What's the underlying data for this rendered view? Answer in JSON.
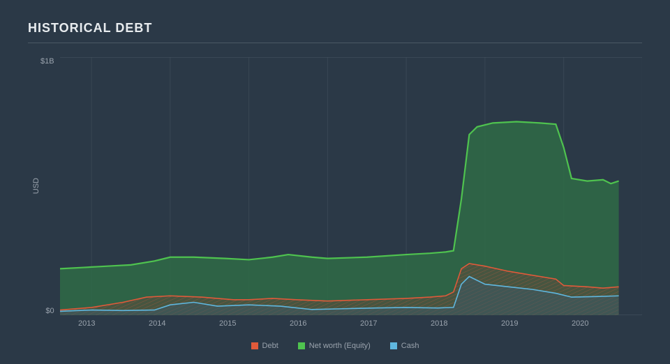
{
  "background_color": "#2b3947",
  "title": "HISTORICAL DEBT",
  "title_color": "#e8ecef",
  "rule_color": "#4a5864",
  "grid_color": "#4a5864",
  "axis_text_color": "#9aa3ad",
  "chart": {
    "type": "area",
    "y_axis_label": "USD",
    "x_ticks": [
      "2013",
      "2014",
      "2015",
      "2016",
      "2017",
      "2018",
      "2019",
      "2020"
    ],
    "y_ticks": [
      "$1B",
      "",
      "$0"
    ],
    "xlim": [
      2012.6,
      2020
    ],
    "ylim": [
      0,
      1.0
    ],
    "series": [
      {
        "name": "Net worth (Equity)",
        "stroke": "#4fc34f",
        "fill": "#2f6b46",
        "fill_opacity": 0.85,
        "stroke_width": 2.2,
        "points": [
          [
            2012.6,
            0.18
          ],
          [
            2012.9,
            0.185
          ],
          [
            2013.2,
            0.19
          ],
          [
            2013.5,
            0.195
          ],
          [
            2013.8,
            0.21
          ],
          [
            2014.0,
            0.225
          ],
          [
            2014.3,
            0.225
          ],
          [
            2014.7,
            0.22
          ],
          [
            2015.0,
            0.215
          ],
          [
            2015.3,
            0.225
          ],
          [
            2015.5,
            0.235
          ],
          [
            2015.8,
            0.225
          ],
          [
            2016.0,
            0.22
          ],
          [
            2016.5,
            0.225
          ],
          [
            2017.0,
            0.235
          ],
          [
            2017.3,
            0.24
          ],
          [
            2017.5,
            0.245
          ],
          [
            2017.6,
            0.25
          ],
          [
            2017.7,
            0.45
          ],
          [
            2017.8,
            0.7
          ],
          [
            2017.9,
            0.73
          ],
          [
            2018.1,
            0.745
          ],
          [
            2018.4,
            0.75
          ],
          [
            2018.7,
            0.745
          ],
          [
            2018.9,
            0.74
          ],
          [
            2019.0,
            0.65
          ],
          [
            2019.1,
            0.53
          ],
          [
            2019.3,
            0.52
          ],
          [
            2019.5,
            0.525
          ],
          [
            2019.6,
            0.51
          ],
          [
            2019.7,
            0.52
          ]
        ]
      },
      {
        "name": "Debt",
        "stroke": "#e05a3a",
        "fill": "#5d4a3d",
        "fill_opacity": 0.55,
        "stroke_width": 1.6,
        "hatch": true,
        "hatch_color": "#d15a3a",
        "points": [
          [
            2012.6,
            0.02
          ],
          [
            2013.0,
            0.03
          ],
          [
            2013.4,
            0.05
          ],
          [
            2013.7,
            0.07
          ],
          [
            2014.0,
            0.075
          ],
          [
            2014.4,
            0.07
          ],
          [
            2014.8,
            0.06
          ],
          [
            2015.0,
            0.06
          ],
          [
            2015.3,
            0.065
          ],
          [
            2015.6,
            0.06
          ],
          [
            2016.0,
            0.055
          ],
          [
            2016.5,
            0.06
          ],
          [
            2017.0,
            0.065
          ],
          [
            2017.3,
            0.07
          ],
          [
            2017.5,
            0.075
          ],
          [
            2017.6,
            0.09
          ],
          [
            2017.7,
            0.18
          ],
          [
            2017.8,
            0.2
          ],
          [
            2018.0,
            0.19
          ],
          [
            2018.3,
            0.17
          ],
          [
            2018.6,
            0.155
          ],
          [
            2018.9,
            0.14
          ],
          [
            2019.0,
            0.115
          ],
          [
            2019.3,
            0.11
          ],
          [
            2019.5,
            0.105
          ],
          [
            2019.7,
            0.11
          ]
        ]
      },
      {
        "name": "Cash",
        "stroke": "#5fb7df",
        "fill": "#3a5868",
        "fill_opacity": 0.5,
        "stroke_width": 1.6,
        "points": [
          [
            2012.6,
            0.015
          ],
          [
            2013.0,
            0.02
          ],
          [
            2013.4,
            0.018
          ],
          [
            2013.8,
            0.02
          ],
          [
            2014.0,
            0.04
          ],
          [
            2014.3,
            0.05
          ],
          [
            2014.6,
            0.035
          ],
          [
            2015.0,
            0.04
          ],
          [
            2015.4,
            0.035
          ],
          [
            2015.8,
            0.022
          ],
          [
            2016.2,
            0.025
          ],
          [
            2016.6,
            0.028
          ],
          [
            2017.0,
            0.03
          ],
          [
            2017.4,
            0.028
          ],
          [
            2017.6,
            0.03
          ],
          [
            2017.7,
            0.12
          ],
          [
            2017.8,
            0.15
          ],
          [
            2018.0,
            0.12
          ],
          [
            2018.3,
            0.11
          ],
          [
            2018.6,
            0.1
          ],
          [
            2018.9,
            0.085
          ],
          [
            2019.1,
            0.07
          ],
          [
            2019.4,
            0.072
          ],
          [
            2019.7,
            0.075
          ]
        ]
      }
    ],
    "legend": [
      {
        "label": "Debt",
        "color": "#e05a3a"
      },
      {
        "label": "Net worth (Equity)",
        "color": "#4fc34f"
      },
      {
        "label": "Cash",
        "color": "#5fb7df"
      }
    ]
  }
}
